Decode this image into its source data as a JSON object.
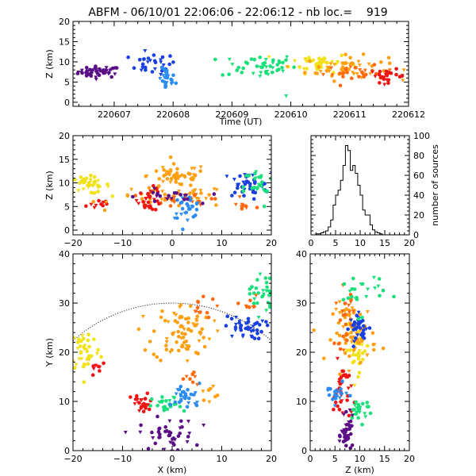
{
  "title": "ABFM - 06/10/01 22:06:06 - 22:06:12 - nb loc.=    919",
  "colors": {
    "purple": "#5a0f87",
    "blue": "#1a3fe0",
    "lightblue": "#2d8cf0",
    "green": "#19e07a",
    "yellow": "#f2e21a",
    "orange": "#ffa012",
    "darkorange": "#ff6a10",
    "red": "#f01414"
  },
  "chart_data": [
    {
      "id": "time-height",
      "type": "scatter",
      "xlabel": "Time (UT)",
      "ylabel": "Z (km)",
      "xlim": [
        220606.3,
        220612.0
      ],
      "ylim": [
        -1,
        20
      ],
      "xticks": [
        220607,
        220608,
        220609,
        220610,
        220611,
        220612
      ],
      "xtick_labels": [
        "220607",
        "220608",
        "220609",
        "220610",
        "220611",
        "220612"
      ],
      "yticks": [
        0,
        5,
        10,
        15,
        20
      ],
      "ytick_labels": [
        "0",
        "5",
        "10",
        "15",
        "20"
      ],
      "clusters": [
        {
          "color": "purple",
          "cx": 220606.75,
          "cy": 7.5,
          "sx": 0.18,
          "sy": 0.7,
          "n": 45
        },
        {
          "color": "blue",
          "cx": 220607.65,
          "cy": 9.5,
          "sx": 0.2,
          "sy": 1.3,
          "n": 30
        },
        {
          "color": "lightblue",
          "cx": 220607.9,
          "cy": 5.5,
          "sx": 0.07,
          "sy": 1.4,
          "n": 24
        },
        {
          "color": "green",
          "cx": 220609.45,
          "cy": 9.0,
          "sx": 0.32,
          "sy": 1.5,
          "n": 45
        },
        {
          "color": "green",
          "cx": 220609.9,
          "cy": 1.5,
          "sx": 0.02,
          "sy": 0.1,
          "n": 1
        },
        {
          "color": "yellow",
          "cx": 220610.5,
          "cy": 9.8,
          "sx": 0.25,
          "sy": 1.2,
          "n": 45
        },
        {
          "color": "orange",
          "cx": 220610.95,
          "cy": 8.4,
          "sx": 0.35,
          "sy": 1.5,
          "n": 55
        },
        {
          "color": "darkorange",
          "cx": 220611.15,
          "cy": 7.2,
          "sx": 0.3,
          "sy": 0.9,
          "n": 25
        },
        {
          "color": "red",
          "cx": 220611.65,
          "cy": 6.5,
          "sx": 0.15,
          "sy": 0.8,
          "n": 25
        }
      ]
    },
    {
      "id": "x-height",
      "type": "scatter",
      "xlabel": "",
      "ylabel": "Z (km)",
      "xlim": [
        -20,
        20
      ],
      "ylim": [
        -1,
        20
      ],
      "xticks": [
        -20,
        -10,
        0,
        10,
        20
      ],
      "xtick_labels": [
        "−20",
        "−10",
        "0",
        "10",
        "20"
      ],
      "yticks": [
        0,
        5,
        10,
        15,
        20
      ],
      "ytick_labels": [
        "0",
        "5",
        "10",
        "15",
        "20"
      ],
      "clusters": [
        {
          "color": "yellow",
          "cx": -17,
          "cy": 9.5,
          "sx": 2.2,
          "sy": 0.9,
          "n": 40
        },
        {
          "color": "red",
          "cx": -15,
          "cy": 5.5,
          "sx": 1.5,
          "sy": 0.7,
          "n": 10
        },
        {
          "color": "orange",
          "cx": 1,
          "cy": 11.5,
          "sx": 3,
          "sy": 1.2,
          "n": 50
        },
        {
          "color": "orange",
          "cx": 0,
          "cy": 7,
          "sx": 6,
          "sy": 1.1,
          "n": 50
        },
        {
          "color": "darkorange",
          "cx": 4,
          "cy": 6.5,
          "sx": 4,
          "sy": 0.8,
          "n": 22
        },
        {
          "color": "red",
          "cx": -4.5,
          "cy": 6.5,
          "sx": 1.2,
          "sy": 1.2,
          "n": 30
        },
        {
          "color": "lightblue",
          "cx": 3,
          "cy": 5,
          "sx": 1.5,
          "sy": 1.2,
          "n": 30
        },
        {
          "color": "purple",
          "cx": -1,
          "cy": 7,
          "sx": 3,
          "sy": 0.8,
          "n": 20
        },
        {
          "color": "blue",
          "cx": 15,
          "cy": 9.5,
          "sx": 2.5,
          "sy": 1.3,
          "n": 40
        },
        {
          "color": "green",
          "cx": 17.5,
          "cy": 9,
          "sx": 1.5,
          "sy": 2.2,
          "n": 25
        },
        {
          "color": "darkorange",
          "cx": 14.5,
          "cy": 5,
          "sx": 1.5,
          "sy": 0.5,
          "n": 10
        }
      ]
    },
    {
      "id": "height-histogram",
      "type": "bar",
      "xlabel": "",
      "ylabel": "number of sources",
      "xlim": [
        0,
        20
      ],
      "ylim": [
        0,
        100
      ],
      "bin_width": 0.5,
      "xticks": [
        0,
        5,
        10,
        15,
        20
      ],
      "xtick_labels": [
        "0",
        "5",
        "10",
        "15",
        "20"
      ],
      "yticks": [
        0,
        20,
        40,
        60,
        80,
        100
      ],
      "ytick_labels": [
        "0",
        "20",
        "40",
        "60",
        "80",
        "100"
      ],
      "bin_starts": [
        0,
        0.5,
        1,
        1.5,
        2,
        2.5,
        3,
        3.5,
        4,
        4.5,
        5,
        5.5,
        6,
        6.5,
        7,
        7.5,
        8,
        8.5,
        9,
        9.5,
        10,
        10.5,
        11,
        11.5,
        12,
        12.5,
        13,
        13.5,
        14,
        14.5,
        15
      ],
      "values": [
        0,
        0,
        1,
        1,
        2,
        3,
        4,
        8,
        15,
        30,
        40,
        45,
        55,
        70,
        90,
        85,
        65,
        70,
        62,
        50,
        40,
        25,
        20,
        20,
        10,
        5,
        3,
        2,
        1,
        0,
        0
      ]
    },
    {
      "id": "plan-view",
      "type": "scatter",
      "xlabel": "X (km)",
      "ylabel": "Y (km)",
      "xlim": [
        -20,
        20
      ],
      "ylim": [
        0,
        40
      ],
      "xticks": [
        -20,
        -10,
        0,
        10,
        20
      ],
      "xtick_labels": [
        "−20",
        "−10",
        "0",
        "10",
        "20"
      ],
      "yticks": [
        0,
        10,
        20,
        30,
        40
      ],
      "ytick_labels": [
        "0",
        "10",
        "20",
        "30",
        "40"
      ],
      "range_circle_radius_km": 30,
      "clusters": [
        {
          "color": "yellow",
          "cx": -17.5,
          "cy": 20.5,
          "sx": 1.5,
          "sy": 2.3,
          "n": 40
        },
        {
          "color": "red",
          "cx": -15,
          "cy": 17,
          "sx": 0.8,
          "sy": 1,
          "n": 8
        },
        {
          "color": "orange",
          "cx": 2,
          "cy": 24,
          "sx": 3,
          "sy": 3,
          "n": 80
        },
        {
          "color": "darkorange",
          "cx": 5,
          "cy": 29,
          "sx": 2,
          "sy": 1,
          "n": 12
        },
        {
          "color": "blue",
          "cx": 14.5,
          "cy": 25,
          "sx": 2,
          "sy": 1.2,
          "n": 40
        },
        {
          "color": "green",
          "cx": 18,
          "cy": 32,
          "sx": 1.2,
          "sy": 2.2,
          "n": 30
        },
        {
          "color": "darkorange",
          "cx": 15.5,
          "cy": 29.5,
          "sx": 1,
          "sy": 1,
          "n": 8
        },
        {
          "color": "red",
          "cx": -6,
          "cy": 9.5,
          "sx": 1.2,
          "sy": 1,
          "n": 28
        },
        {
          "color": "green",
          "cx": -1,
          "cy": 9,
          "sx": 1.5,
          "sy": 1,
          "n": 25
        },
        {
          "color": "lightblue",
          "cx": 3,
          "cy": 11,
          "sx": 1.5,
          "sy": 1.3,
          "n": 30
        },
        {
          "color": "orange",
          "cx": 7,
          "cy": 12,
          "sx": 1,
          "sy": 0.8,
          "n": 8
        },
        {
          "color": "darkorange",
          "cx": 4,
          "cy": 14.5,
          "sx": 1,
          "sy": 1,
          "n": 8
        },
        {
          "color": "purple",
          "cx": -1,
          "cy": 3,
          "sx": 2.8,
          "sy": 1.8,
          "n": 45
        }
      ]
    },
    {
      "id": "height-y",
      "type": "scatter",
      "xlabel": "Z (km)",
      "ylabel": "",
      "xlim": [
        0,
        20
      ],
      "ylim": [
        0,
        40
      ],
      "xticks": [
        0,
        5,
        10,
        15,
        20
      ],
      "xtick_labels": [
        "0",
        "5",
        "10",
        "15",
        "20"
      ],
      "yticks": [
        0,
        10,
        20,
        30,
        40
      ],
      "ytick_labels": [
        "0",
        "10",
        "20",
        "30",
        "40"
      ],
      "clusters": [
        {
          "color": "yellow",
          "cx": 9.5,
          "cy": 20.5,
          "sx": 1.2,
          "sy": 2.3,
          "n": 35
        },
        {
          "color": "orange",
          "cx": 9,
          "cy": 24,
          "sx": 2.2,
          "sy": 3,
          "n": 70
        },
        {
          "color": "darkorange",
          "cx": 7,
          "cy": 27,
          "sx": 1,
          "sy": 3,
          "n": 25
        },
        {
          "color": "blue",
          "cx": 10,
          "cy": 25,
          "sx": 1,
          "sy": 1.3,
          "n": 35
        },
        {
          "color": "green",
          "cx": 10,
          "cy": 32,
          "sx": 2.5,
          "sy": 2.2,
          "n": 25
        },
        {
          "color": "red",
          "cx": 6.5,
          "cy": 12,
          "sx": 0.9,
          "sy": 3,
          "n": 35
        },
        {
          "color": "lightblue",
          "cx": 5,
          "cy": 11.5,
          "sx": 1.3,
          "sy": 1,
          "n": 20
        },
        {
          "color": "green",
          "cx": 10,
          "cy": 8.5,
          "sx": 1.3,
          "sy": 1.3,
          "n": 25
        },
        {
          "color": "purple",
          "cx": 7.5,
          "cy": 3,
          "sx": 0.6,
          "sy": 1.8,
          "n": 40
        }
      ]
    }
  ]
}
